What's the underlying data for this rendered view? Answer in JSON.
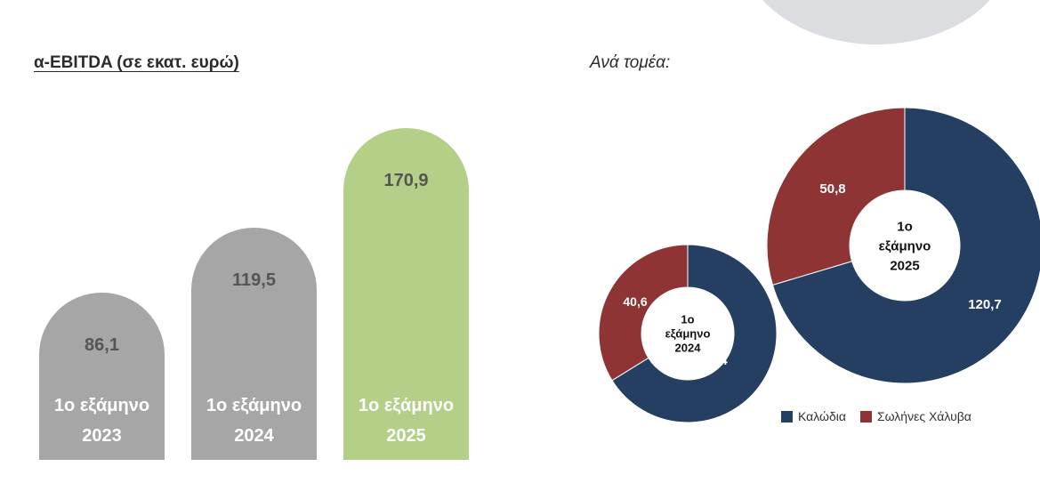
{
  "left_title": "α-EBITDA (σε εκατ. ευρώ)",
  "right_title": "Ανά τομέα:",
  "colors": {
    "bar_grey": "#a6a6a6",
    "bar_green": "#b3cf88",
    "cables": "#243f62",
    "steel_pipes": "#8f3434",
    "decor_grey": "#dcdde0"
  },
  "chart_data": [
    {
      "type": "bar",
      "title": "α-EBITDA (σε εκατ. ευρώ)",
      "categories": [
        [
          "1ο εξάμηνο",
          "2023"
        ],
        [
          "1ο εξάμηνο",
          "2024"
        ],
        [
          "1ο εξάμηνο",
          "2025"
        ]
      ],
      "values": [
        86.1,
        119.5,
        170.9
      ],
      "value_labels": [
        "86,1",
        "119,5",
        "170,9"
      ],
      "bar_colors": [
        "#a6a6a6",
        "#a6a6a6",
        "#b3cf88"
      ],
      "ylim": [
        0,
        200
      ],
      "grid": false,
      "legend": "none"
    },
    {
      "type": "pie",
      "variant": "donut",
      "center_label": [
        "1ο",
        "εξάμηνο",
        "2024"
      ],
      "labels": [
        "Καλώδια",
        "Σωλήνες Χάλυβα"
      ],
      "values": [
        79.4,
        40.6
      ],
      "value_labels": [
        "79,4",
        "40,6"
      ],
      "colors": [
        "#243f62",
        "#8f3434"
      ]
    },
    {
      "type": "pie",
      "variant": "donut",
      "center_label": [
        "1ο",
        "εξάμηνο",
        "2025"
      ],
      "labels": [
        "Καλώδια",
        "Σωλήνες Χάλυβα"
      ],
      "values": [
        120.7,
        50.8
      ],
      "value_labels": [
        "120,7",
        "50,8"
      ],
      "colors": [
        "#243f62",
        "#8f3434"
      ]
    }
  ],
  "legend": {
    "placement": "bottom-right",
    "items": [
      {
        "label": "Καλώδια",
        "color": "#243f62"
      },
      {
        "label": "Σωλήνες Χάλυβα",
        "color": "#8f3434"
      }
    ]
  }
}
